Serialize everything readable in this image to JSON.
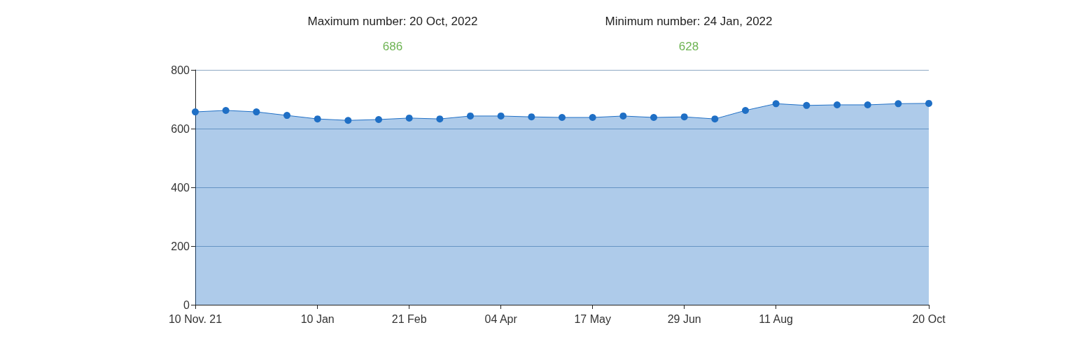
{
  "chart_data": {
    "type": "area",
    "categories": [
      "10 Nov. 21",
      null,
      null,
      null,
      "10 Jan",
      null,
      null,
      "21 Feb",
      null,
      null,
      "04 Apr",
      null,
      null,
      "17 May",
      null,
      null,
      "29 Jun",
      null,
      null,
      "11 Aug",
      null,
      null,
      null,
      null,
      "20 Oct"
    ],
    "series": [
      {
        "color": "#1f6fc5",
        "values": [
          657,
          662,
          657,
          645,
          633,
          628,
          631,
          636,
          633,
          643,
          643,
          640,
          638,
          638,
          643,
          638,
          640,
          633,
          662,
          685,
          679,
          681,
          681,
          685,
          686
        ]
      }
    ],
    "ylim": [
      0,
      800
    ],
    "yticks": [
      0,
      200,
      400,
      600,
      800
    ],
    "grid": "y",
    "marker": "circle",
    "annotations": [
      "Maximum number: 20 Oct, 2022",
      "686",
      "Minimum number: 24 Jan, 2022",
      "628"
    ]
  }
}
